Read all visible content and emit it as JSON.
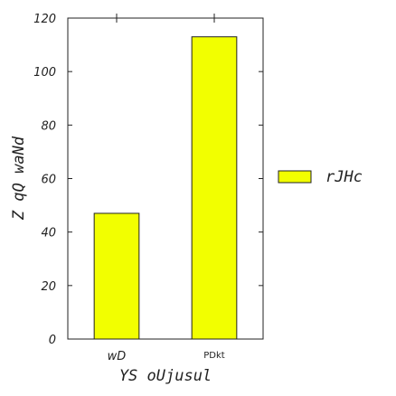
{
  "chart_data": {
    "type": "bar",
    "categories": [
      "wD",
      "PDkt"
    ],
    "series": [
      {
        "name": "rJHc",
        "values": [
          47,
          113
        ],
        "color": "#f2ff00"
      }
    ],
    "xlabel": "YS oUjusul",
    "ylabel": "Z qQ waNd",
    "ylim": [
      0,
      120
    ],
    "yticks": [
      "0",
      "20",
      "40",
      "60",
      "80",
      "100",
      "120"
    ],
    "legend": "right",
    "grid": false
  }
}
